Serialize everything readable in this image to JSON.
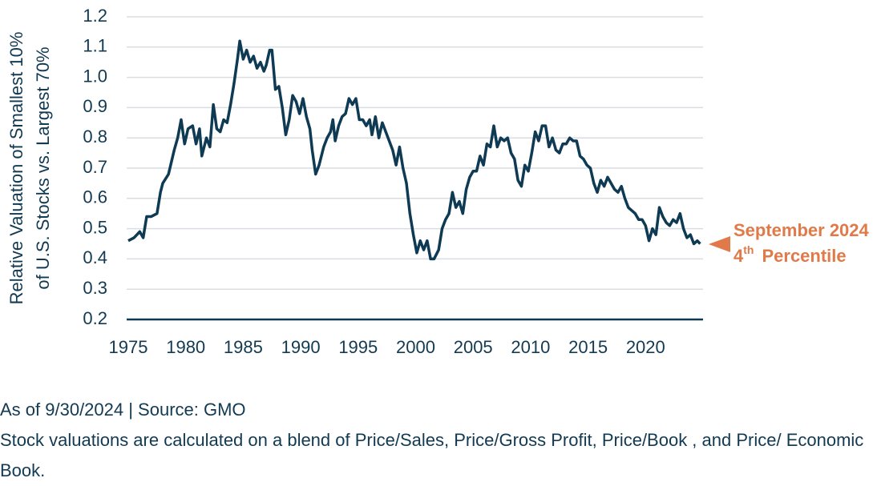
{
  "chart_data": {
    "type": "line",
    "y_label_lines": [
      "Relative Valuation of Smallest 10%",
      "of U.S. Stocks vs. Largest 70%"
    ],
    "annotation": {
      "line1": "September 2024",
      "ordinal": "4",
      "ordinal_suffix": "th",
      "line2": "Percentile"
    },
    "x": [
      1975,
      1975.5,
      1976,
      1976.3,
      1976.6,
      1977,
      1977.5,
      1977.8,
      1978,
      1978.5,
      1979,
      1979.3,
      1979.6,
      1979.9,
      1980.2,
      1980.6,
      1980.9,
      1981.2,
      1981.4,
      1981.8,
      1982.1,
      1982.4,
      1982.7,
      1983,
      1983.3,
      1983.6,
      1983.9,
      1984.2,
      1984.5,
      1984.7,
      1985,
      1985.3,
      1985.6,
      1985.9,
      1986.2,
      1986.5,
      1986.8,
      1987,
      1987.3,
      1987.5,
      1987.8,
      1988.1,
      1988.4,
      1988.7,
      1989,
      1989.3,
      1989.6,
      1989.9,
      1990.2,
      1990.5,
      1990.8,
      1991,
      1991.3,
      1991.6,
      1992,
      1992.3,
      1992.6,
      1992.8,
      1993,
      1993.3,
      1993.6,
      1993.9,
      1994.2,
      1994.5,
      1994.8,
      1995.1,
      1995.4,
      1995.7,
      1996,
      1996.2,
      1996.5,
      1996.8,
      1997.1,
      1997.4,
      1997.7,
      1998,
      1998.3,
      1998.6,
      1998.9,
      1999.2,
      1999.5,
      1999.8,
      2000.1,
      2000.4,
      2000.7,
      2001,
      2001.3,
      2001.6,
      2002,
      2002.3,
      2002.6,
      2002.9,
      2003.2,
      2003.5,
      2003.8,
      2004.1,
      2004.4,
      2004.7,
      2005,
      2005.3,
      2005.6,
      2005.9,
      2006.2,
      2006.5,
      2006.8,
      2007.1,
      2007.4,
      2007.7,
      2008,
      2008.3,
      2008.6,
      2008.9,
      2009.2,
      2009.5,
      2009.8,
      2010.1,
      2010.4,
      2010.7,
      2011,
      2011.3,
      2011.6,
      2011.9,
      2012.2,
      2012.5,
      2012.8,
      2013.1,
      2013.4,
      2013.7,
      2014,
      2014.3,
      2014.6,
      2014.9,
      2015.2,
      2015.5,
      2015.8,
      2016.1,
      2016.4,
      2016.7,
      2017,
      2017.3,
      2017.6,
      2017.9,
      2018.2,
      2018.5,
      2018.8,
      2019.1,
      2019.4,
      2019.7,
      2020,
      2020.3,
      2020.6,
      2020.9,
      2021.2,
      2021.5,
      2021.8,
      2022.1,
      2022.4,
      2022.7,
      2023,
      2023.3,
      2023.6,
      2023.9,
      2024.2,
      2024.5,
      2024.75
    ],
    "series": [
      {
        "color": "#0f3a54",
        "values": [
          0.46,
          0.47,
          0.49,
          0.47,
          0.54,
          0.54,
          0.55,
          0.62,
          0.65,
          0.68,
          0.76,
          0.8,
          0.86,
          0.78,
          0.83,
          0.84,
          0.78,
          0.83,
          0.74,
          0.8,
          0.77,
          0.91,
          0.83,
          0.82,
          0.86,
          0.85,
          0.91,
          0.98,
          1.06,
          1.12,
          1.06,
          1.09,
          1.05,
          1.07,
          1.03,
          1.05,
          1.02,
          1.04,
          1.09,
          1.09,
          0.96,
          0.97,
          0.9,
          0.81,
          0.86,
          0.94,
          0.92,
          0.88,
          0.93,
          0.87,
          0.83,
          0.76,
          0.68,
          0.71,
          0.77,
          0.8,
          0.82,
          0.86,
          0.79,
          0.84,
          0.87,
          0.88,
          0.93,
          0.91,
          0.93,
          0.86,
          0.86,
          0.84,
          0.86,
          0.81,
          0.87,
          0.8,
          0.85,
          0.82,
          0.79,
          0.76,
          0.71,
          0.77,
          0.7,
          0.65,
          0.55,
          0.48,
          0.42,
          0.46,
          0.43,
          0.46,
          0.4,
          0.4,
          0.43,
          0.5,
          0.53,
          0.55,
          0.62,
          0.57,
          0.59,
          0.55,
          0.63,
          0.67,
          0.69,
          0.69,
          0.74,
          0.71,
          0.78,
          0.77,
          0.84,
          0.77,
          0.8,
          0.79,
          0.8,
          0.75,
          0.73,
          0.66,
          0.64,
          0.71,
          0.69,
          0.75,
          0.82,
          0.79,
          0.84,
          0.84,
          0.77,
          0.8,
          0.76,
          0.75,
          0.78,
          0.78,
          0.8,
          0.79,
          0.79,
          0.74,
          0.73,
          0.71,
          0.7,
          0.65,
          0.62,
          0.66,
          0.64,
          0.67,
          0.65,
          0.63,
          0.62,
          0.64,
          0.6,
          0.57,
          0.56,
          0.55,
          0.53,
          0.53,
          0.51,
          0.46,
          0.5,
          0.48,
          0.57,
          0.54,
          0.52,
          0.51,
          0.53,
          0.52,
          0.55,
          0.5,
          0.47,
          0.48,
          0.45,
          0.46,
          0.45
        ]
      }
    ],
    "xlim": [
      1975,
      2025
    ],
    "xticks": [
      1975,
      1980,
      1985,
      1990,
      1995,
      2000,
      2005,
      2010,
      2015,
      2020
    ],
    "ylim": [
      0.2,
      1.2
    ],
    "yticks": [
      {
        "value": 0.2,
        "label": "0.2"
      },
      {
        "value": 0.3,
        "label": "0.3"
      },
      {
        "value": 0.4,
        "label": "0.4"
      },
      {
        "value": 0.5,
        "label": "0.5"
      },
      {
        "value": 0.6,
        "label": "0.6"
      },
      {
        "value": 0.7,
        "label": "0.7"
      },
      {
        "value": 0.8,
        "label": "0.8"
      },
      {
        "value": 0.9,
        "label": "0.9"
      },
      {
        "value": 1.0,
        "label": "1.0"
      },
      {
        "value": 1.1,
        "label": "1.1"
      },
      {
        "value": 1.2,
        "label": "1.2"
      }
    ],
    "grid": true,
    "annotation_color": "#e07a48"
  },
  "footer": {
    "source": "As of 9/30/2024 | Source: GMO",
    "note": "Stock valuations are calculated on a blend of Price/Sales, Price/Gross Profit, Price/Book , and Price/ Economic Book."
  }
}
